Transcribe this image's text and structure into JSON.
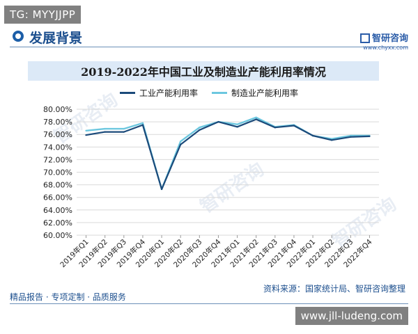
{
  "overlay": {
    "tg_badge": "TG: MYYJJPP",
    "url_badge": "www.jll-ludeng.com"
  },
  "header": {
    "title": "发展背景",
    "brand_name": "智研咨询",
    "brand_url": "www.chyxx.com"
  },
  "footer": {
    "left": "精品报告 · 专项定制 · 品质服务",
    "source": "资料来源：国家统计局、智研咨询整理"
  },
  "watermark_text": "智研咨询",
  "colors": {
    "industrial": "#1b4a7a",
    "manufacturing": "#6cc7df",
    "grid": "#d9d9d9"
  },
  "chart_data": {
    "type": "line",
    "title": "2019-2022年中国工业及制造业产能利用率情况",
    "xlabel": "",
    "ylabel": "",
    "ylim": [
      60,
      80
    ],
    "ytick_step": 2,
    "ytick_format": "percent2",
    "legend_position": "top-center",
    "grid": true,
    "categories": [
      "2019年Q1",
      "2019年Q2",
      "2019年Q3",
      "2019年Q4",
      "2020年Q1",
      "2020年Q2",
      "2020年Q3",
      "2020年Q4",
      "2021年Q1",
      "2021年Q2",
      "2021年Q3",
      "2021年Q4",
      "2022年Q1",
      "2022年Q2",
      "2022年Q3",
      "2022年Q4"
    ],
    "series": [
      {
        "name": "工业产能利用率",
        "values": [
          75.9,
          76.4,
          76.4,
          77.5,
          67.3,
          74.4,
          76.7,
          78.0,
          77.2,
          78.4,
          77.1,
          77.4,
          75.8,
          75.1,
          75.6,
          75.7
        ]
      },
      {
        "name": "制造业产能利用率",
        "values": [
          76.6,
          76.9,
          76.9,
          77.8,
          67.3,
          74.9,
          77.1,
          78.0,
          77.6,
          78.7,
          77.2,
          77.5,
          75.8,
          75.3,
          75.8,
          75.8
        ]
      }
    ]
  }
}
